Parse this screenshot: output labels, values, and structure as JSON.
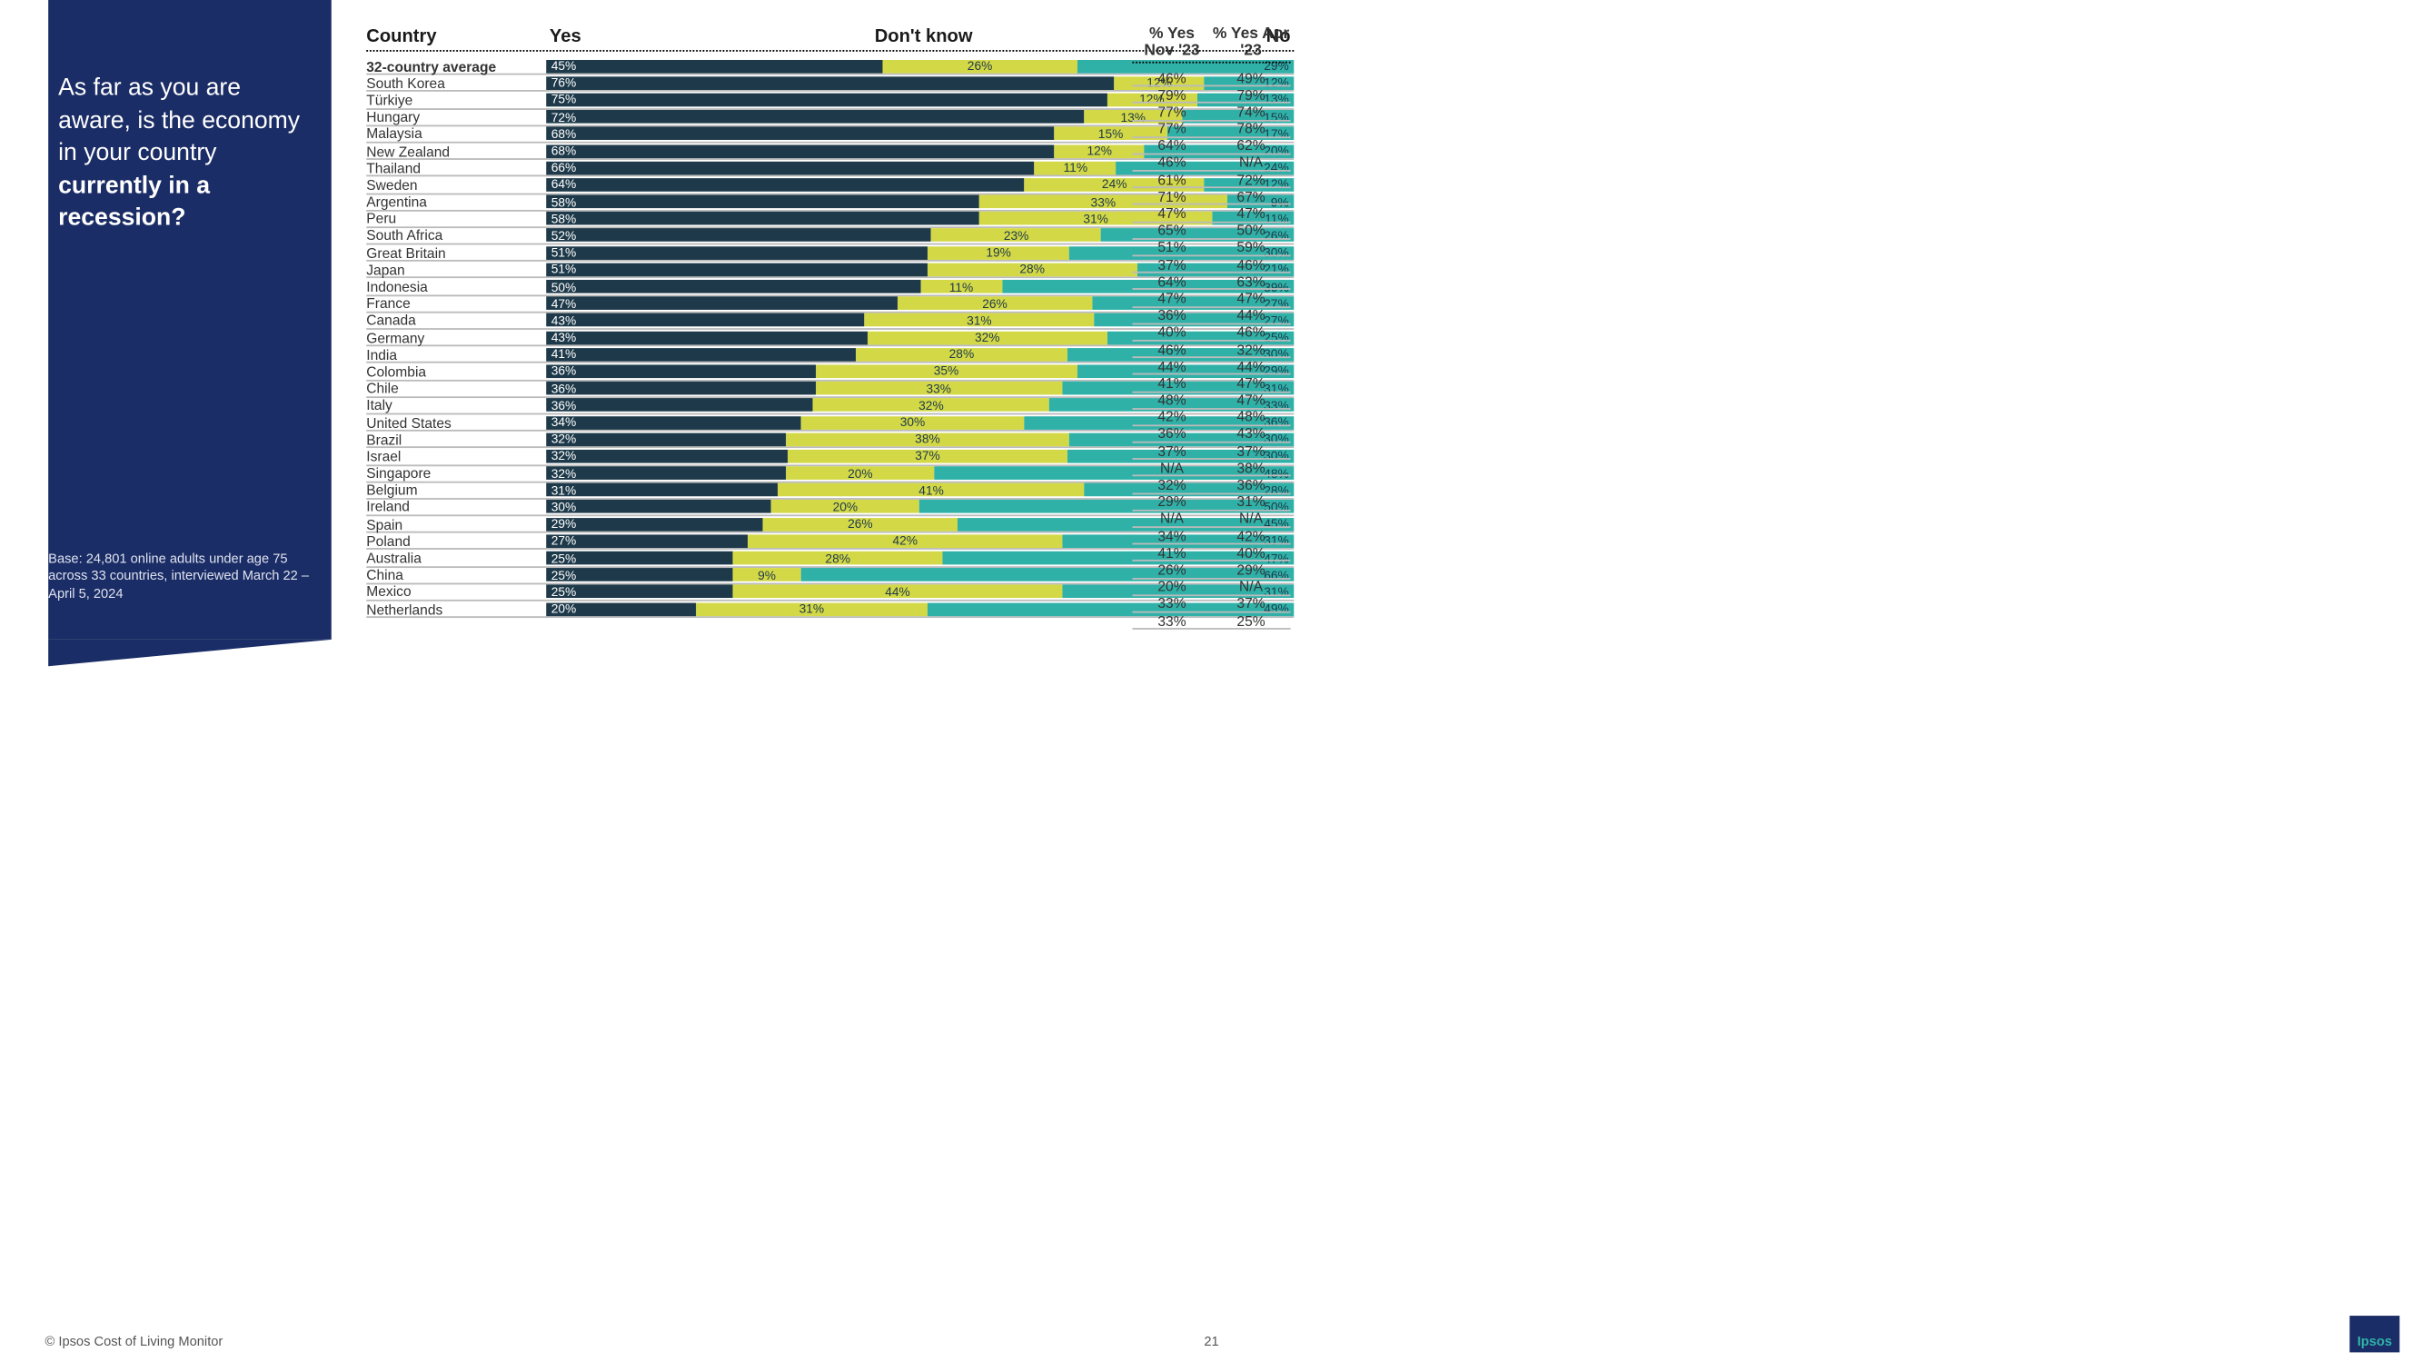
{
  "question_part1": "As far as you are aware, is the economy in your country ",
  "question_bold": "currently in a recession?",
  "base_note": "Base: 24,801 online adults under age 75 across 33 countries, interviewed March 22 – April 5, 2024",
  "footer": "© Ipsos Cost of Living Monitor",
  "page_number": "21",
  "logo_text": "Ipsos",
  "headers": {
    "country": "Country",
    "yes": "Yes",
    "dont_know": "Don't know",
    "no": "No",
    "nov23": "% Yes Nov '23",
    "apr23": "% Yes Apr '23"
  },
  "colors": {
    "yes": "#1e3a4a",
    "dont_know": "#d3d847",
    "no": "#2fb1a8",
    "sidebar": "#1b2d66"
  },
  "rows": [
    {
      "country": "32-country average",
      "yes": 45,
      "dk": 26,
      "no": 29,
      "nov23": "46%",
      "apr23": "49%",
      "bold": true
    },
    {
      "country": "South Korea",
      "yes": 76,
      "dk": 12,
      "no": 12,
      "nov23": "79%",
      "apr23": "79%"
    },
    {
      "country": "Türkiye",
      "yes": 75,
      "dk": 12,
      "no": 13,
      "nov23": "77%",
      "apr23": "74%"
    },
    {
      "country": "Hungary",
      "yes": 72,
      "dk": 13,
      "no": 15,
      "nov23": "77%",
      "apr23": "78%"
    },
    {
      "country": "Malaysia",
      "yes": 68,
      "dk": 15,
      "no": 17,
      "nov23": "64%",
      "apr23": "62%"
    },
    {
      "country": "New Zealand",
      "yes": 68,
      "dk": 12,
      "no": 20,
      "nov23": "46%",
      "apr23": "N/A"
    },
    {
      "country": "Thailand",
      "yes": 66,
      "dk": 11,
      "no": 24,
      "nov23": "61%",
      "apr23": "72%"
    },
    {
      "country": "Sweden",
      "yes": 64,
      "dk": 24,
      "no": 12,
      "nov23": "71%",
      "apr23": "67%"
    },
    {
      "country": "Argentina",
      "yes": 58,
      "dk": 33,
      "no": 9,
      "nov23": "47%",
      "apr23": "47%"
    },
    {
      "country": "Peru",
      "yes": 58,
      "dk": 31,
      "no": 11,
      "nov23": "65%",
      "apr23": "50%"
    },
    {
      "country": "South Africa",
      "yes": 52,
      "dk": 23,
      "no": 26,
      "nov23": "51%",
      "apr23": "59%"
    },
    {
      "country": "Great Britain",
      "yes": 51,
      "dk": 19,
      "no": 30,
      "nov23": "37%",
      "apr23": "46%"
    },
    {
      "country": "Japan",
      "yes": 51,
      "dk": 28,
      "no": 21,
      "nov23": "64%",
      "apr23": "63%"
    },
    {
      "country": "Indonesia",
      "yes": 50,
      "dk": 11,
      "no": 39,
      "nov23": "47%",
      "apr23": "47%"
    },
    {
      "country": "France",
      "yes": 47,
      "dk": 26,
      "no": 27,
      "nov23": "36%",
      "apr23": "44%"
    },
    {
      "country": "Canada",
      "yes": 43,
      "dk": 31,
      "no": 27,
      "nov23": "40%",
      "apr23": "46%"
    },
    {
      "country": "Germany",
      "yes": 43,
      "dk": 32,
      "no": 25,
      "nov23": "46%",
      "apr23": "32%"
    },
    {
      "country": "India",
      "yes": 41,
      "dk": 28,
      "no": 30,
      "nov23": "44%",
      "apr23": "44%"
    },
    {
      "country": "Colombia",
      "yes": 36,
      "dk": 35,
      "no": 29,
      "nov23": "41%",
      "apr23": "47%"
    },
    {
      "country": "Chile",
      "yes": 36,
      "dk": 33,
      "no": 31,
      "nov23": "48%",
      "apr23": "47%"
    },
    {
      "country": "Italy",
      "yes": 36,
      "dk": 32,
      "no": 33,
      "nov23": "42%",
      "apr23": "48%"
    },
    {
      "country": "United States",
      "yes": 34,
      "dk": 30,
      "no": 36,
      "nov23": "36%",
      "apr23": "43%"
    },
    {
      "country": "Brazil",
      "yes": 32,
      "dk": 38,
      "no": 30,
      "nov23": "37%",
      "apr23": "37%"
    },
    {
      "country": "Israel",
      "yes": 32,
      "dk": 37,
      "no": 30,
      "nov23": "N/A",
      "apr23": "38%"
    },
    {
      "country": "Singapore",
      "yes": 32,
      "dk": 20,
      "no": 48,
      "nov23": "32%",
      "apr23": "36%"
    },
    {
      "country": "Belgium",
      "yes": 31,
      "dk": 41,
      "no": 28,
      "nov23": "29%",
      "apr23": "31%"
    },
    {
      "country": "Ireland",
      "yes": 30,
      "dk": 20,
      "no": 50,
      "nov23": "N/A",
      "apr23": "N/A"
    },
    {
      "country": "Spain",
      "yes": 29,
      "dk": 26,
      "no": 45,
      "nov23": "34%",
      "apr23": "42%"
    },
    {
      "country": "Poland",
      "yes": 27,
      "dk": 42,
      "no": 31,
      "nov23": "41%",
      "apr23": "40%"
    },
    {
      "country": "Australia",
      "yes": 25,
      "dk": 28,
      "no": 47,
      "nov23": "26%",
      "apr23": "29%"
    },
    {
      "country": "China",
      "yes": 25,
      "dk": 9,
      "no": 66,
      "nov23": "20%",
      "apr23": "N/A"
    },
    {
      "country": "Mexico",
      "yes": 25,
      "dk": 44,
      "no": 31,
      "nov23": "33%",
      "apr23": "37%"
    },
    {
      "country": "Netherlands",
      "yes": 20,
      "dk": 31,
      "no": 49,
      "nov23": "33%",
      "apr23": "25%"
    }
  ]
}
